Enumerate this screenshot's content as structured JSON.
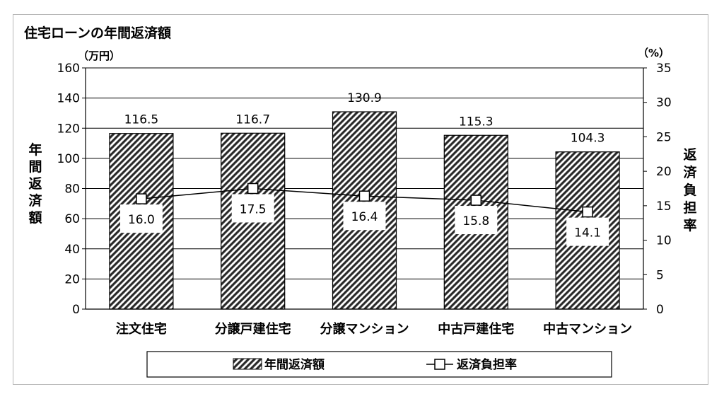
{
  "chart_data": {
    "type": "bar",
    "title": "住宅ローンの年間返済額",
    "categories": [
      "注文住宅",
      "分譲戸建住宅",
      "分譲マンション",
      "中古戸建住宅",
      "中古マンション"
    ],
    "series": [
      {
        "name": "年間返済額",
        "type": "bar",
        "axis": "left",
        "values": [
          116.5,
          116.7,
          130.9,
          115.3,
          104.3
        ],
        "value_labels": [
          "116.5",
          "116.7",
          "130.9",
          "115.3",
          "104.3"
        ],
        "fill": "diagonal-hatch"
      },
      {
        "name": "返済負担率",
        "type": "line",
        "axis": "right",
        "values": [
          16.0,
          17.5,
          16.4,
          15.8,
          14.1
        ],
        "value_labels": [
          "16.0",
          "17.5",
          "16.4",
          "15.8",
          "14.1"
        ],
        "marker": "open-square"
      }
    ],
    "y_left": {
      "label": "年間返済額",
      "unit": "（万円）",
      "min": 0,
      "max": 160,
      "ticks": [
        "0",
        "20",
        "40",
        "60",
        "80",
        "100",
        "120",
        "140",
        "160"
      ]
    },
    "y_right": {
      "label": "返済負担率",
      "unit": "（%）",
      "min": 0,
      "max": 35,
      "ticks": [
        "0",
        "5",
        "10",
        "15",
        "20",
        "25",
        "30",
        "35"
      ]
    },
    "grid": true,
    "legend": {
      "position": "bottom",
      "items": [
        "年間返済額",
        "返済負担率"
      ]
    },
    "colors": {
      "bar_stroke": "#000000",
      "hatch": "#2a2a2a",
      "grid": "#000000",
      "frame": "#b8b8b8"
    }
  }
}
